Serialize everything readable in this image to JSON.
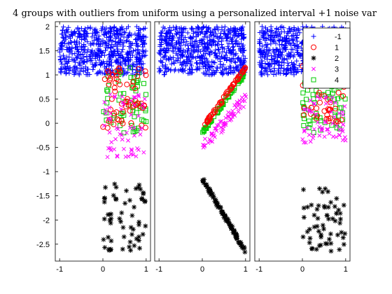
{
  "chart_data": {
    "type": "scatter",
    "title": "4 groups with outliers from uniform using a personalized interval +1 noise var",
    "xlabel": "",
    "ylabel": "",
    "panels": [
      {
        "name": "left",
        "xlim": [
          -1.1,
          1.1
        ],
        "xticks": [
          -1,
          0,
          1
        ]
      },
      {
        "name": "middle",
        "xlim": [
          -1.1,
          1.1
        ],
        "xticks": [
          -1,
          0,
          1
        ]
      },
      {
        "name": "right",
        "xlim": [
          -1.1,
          1.1
        ],
        "xticks": [
          -1,
          0,
          1
        ]
      }
    ],
    "ylim": [
      -2.85,
      2.1
    ],
    "yticks": [
      2,
      1.5,
      1,
      0.5,
      0,
      -0.5,
      -1,
      -1.5,
      -2,
      -2.5
    ],
    "grid": false,
    "legend_placement": "top-right",
    "series": [
      {
        "label": "-1",
        "marker": "plus",
        "color": "#0000ff"
      },
      {
        "label": "1",
        "marker": "circle",
        "color": "#ff0000"
      },
      {
        "label": "2",
        "marker": "asterisk",
        "color": "#000000"
      },
      {
        "label": "3",
        "marker": "x",
        "color": "#ff00ff"
      },
      {
        "label": "4",
        "marker": "square",
        "color": "#00cc00"
      }
    ],
    "data": {
      "outliers": {
        "x_range": [
          -1.0,
          1.0
        ],
        "y_range": [
          1.0,
          2.0
        ],
        "count_per_panel": 600
      },
      "left": {
        "g1": {
          "x_range": [
            0.0,
            1.0
          ],
          "y_range": [
            -0.1,
            1.25
          ],
          "count": 60
        },
        "g2": {
          "x_range": [
            0.0,
            1.0
          ],
          "y_range": [
            -2.65,
            -1.25
          ],
          "count": 60
        },
        "g3": {
          "x_range": [
            0.0,
            1.0
          ],
          "y_range": [
            -0.7,
            0.6
          ],
          "count": 60
        },
        "g4": {
          "x_range": [
            0.0,
            1.0
          ],
          "y_range": [
            -0.2,
            1.2
          ],
          "count": 60
        }
      },
      "middle": {
        "g1": {
          "x_start": 0.0,
          "x_end": 1.0,
          "y_start": -0.1,
          "y_end": 1.15,
          "count": 60
        },
        "g2": {
          "x_start": 0.0,
          "x_end": 1.0,
          "y_start": -1.15,
          "y_end": -2.65,
          "count": 100
        },
        "g3": {
          "x_start": 0.0,
          "x_end": 1.0,
          "y_start": -0.5,
          "y_end": 0.5,
          "count": 60
        },
        "g4": {
          "x_start": 0.0,
          "x_end": 1.0,
          "y_start": -0.2,
          "y_end": 1.05,
          "count": 60
        }
      },
      "right": {
        "g1": {
          "x_range": [
            0.0,
            1.0
          ],
          "y_range": [
            0.0,
            1.25
          ],
          "count": 60
        },
        "g2": {
          "x_range": [
            0.0,
            1.0
          ],
          "y_range": [
            -2.65,
            -1.35
          ],
          "count": 60
        },
        "g3": {
          "x_range": [
            0.0,
            1.0
          ],
          "y_range": [
            -0.4,
            0.55
          ],
          "count": 60
        },
        "g4": {
          "x_range": [
            0.0,
            1.0
          ],
          "y_range": [
            -0.2,
            0.85
          ],
          "count": 60
        }
      }
    }
  }
}
